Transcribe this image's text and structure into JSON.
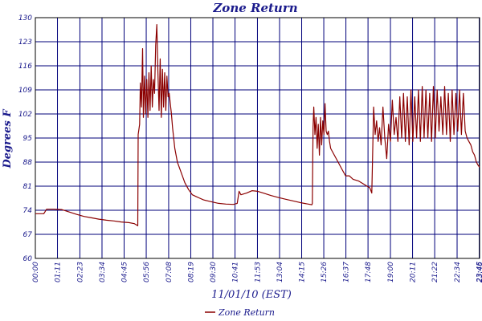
{
  "chart_data": {
    "type": "line",
    "title": "Zone Return",
    "xlabel": "11/01/10 (EST)",
    "ylabel": "Degrees F",
    "ylim": [
      60,
      130
    ],
    "xlim": [
      0,
      23.77
    ],
    "yticks": [
      60,
      67,
      74,
      81,
      88,
      95,
      102,
      109,
      116,
      123,
      130
    ],
    "xticks": [
      {
        "h": 0.0,
        "label": "00:00"
      },
      {
        "h": 1.1833,
        "label": "01:11"
      },
      {
        "h": 2.3833,
        "label": "02:23"
      },
      {
        "h": 3.5667,
        "label": "03:34"
      },
      {
        "h": 4.75,
        "label": "04:45"
      },
      {
        "h": 5.9333,
        "label": "05:56"
      },
      {
        "h": 7.1333,
        "label": "07:08"
      },
      {
        "h": 8.3167,
        "label": "08:19"
      },
      {
        "h": 9.5,
        "label": "09:30"
      },
      {
        "h": 10.6833,
        "label": "10:41"
      },
      {
        "h": 11.8833,
        "label": "11:53"
      },
      {
        "h": 13.0667,
        "label": "13:04"
      },
      {
        "h": 14.25,
        "label": "14:15"
      },
      {
        "h": 15.4333,
        "label": "15:26"
      },
      {
        "h": 16.6167,
        "label": "16:37"
      },
      {
        "h": 17.8,
        "label": "17:48"
      },
      {
        "h": 19.0,
        "label": "19:00"
      },
      {
        "h": 20.1833,
        "label": "20:11"
      },
      {
        "h": 21.3667,
        "label": "21:22"
      },
      {
        "h": 22.5667,
        "label": "22:34"
      },
      {
        "h": 23.75,
        "label": "23:45"
      },
      {
        "h": 23.7667,
        "label": "23:46"
      }
    ],
    "grid": true,
    "legend_position": "bottom-left",
    "series": [
      {
        "name": "Zone Return",
        "color": "#8b0000",
        "x": [
          0,
          0.3,
          0.45,
          0.6,
          1.0,
          1.4,
          1.8,
          2.2,
          2.6,
          3.0,
          3.4,
          3.8,
          4.2,
          4.6,
          5.0,
          5.3,
          5.48,
          5.5,
          5.58,
          5.62,
          5.68,
          5.74,
          5.78,
          5.84,
          5.9,
          5.96,
          6.02,
          6.08,
          6.14,
          6.2,
          6.26,
          6.32,
          6.38,
          6.44,
          6.5,
          6.56,
          6.62,
          6.68,
          6.74,
          6.8,
          6.86,
          6.92,
          6.98,
          7.04,
          7.1,
          7.16,
          7.22,
          7.28,
          7.34,
          7.4,
          7.46,
          7.6,
          7.8,
          8.0,
          8.2,
          8.4,
          8.6,
          8.8,
          9.0,
          9.4,
          9.8,
          10.2,
          10.6,
          10.8,
          10.9,
          11.0,
          11.3,
          11.6,
          11.9,
          12.2,
          12.6,
          13.0,
          13.4,
          13.8,
          14.2,
          14.6,
          14.8,
          14.82,
          14.86,
          14.9,
          14.96,
          15.02,
          15.08,
          15.14,
          15.2,
          15.26,
          15.32,
          15.38,
          15.44,
          15.5,
          15.56,
          15.62,
          15.68,
          15.74,
          15.8,
          16.0,
          16.2,
          16.4,
          16.6,
          16.8,
          17.0,
          17.3,
          17.6,
          17.9,
          18.0,
          18.02,
          18.1,
          18.18,
          18.26,
          18.34,
          18.42,
          18.5,
          18.6,
          18.7,
          18.8,
          18.9,
          19.0,
          19.1,
          19.2,
          19.3,
          19.4,
          19.5,
          19.6,
          19.7,
          19.8,
          19.9,
          20.0,
          20.1,
          20.2,
          20.3,
          20.4,
          20.5,
          20.6,
          20.7,
          20.8,
          20.9,
          21.0,
          21.1,
          21.2,
          21.3,
          21.4,
          21.5,
          21.6,
          21.7,
          21.8,
          21.9,
          22.0,
          22.1,
          22.2,
          22.3,
          22.4,
          22.5,
          22.6,
          22.7,
          22.8,
          22.9,
          23.0,
          23.1,
          23.2,
          23.3,
          23.4,
          23.5,
          23.6,
          23.7,
          23.77
        ],
        "y": [
          73,
          73,
          73,
          74.3,
          74.3,
          74.2,
          73.5,
          72.8,
          72.2,
          71.8,
          71.4,
          71.1,
          70.9,
          70.6,
          70.4,
          70.1,
          69.5,
          96,
          99,
          111,
          104,
          121,
          101,
          113,
          102,
          112,
          101,
          114,
          103,
          116,
          104,
          112,
          108,
          122,
          128,
          114,
          103,
          118,
          101,
          115,
          104,
          114,
          103,
          113,
          107,
          108,
          105,
          102,
          98,
          95,
          92,
          88,
          85,
          82,
          80,
          78.5,
          78,
          77.5,
          77,
          76.5,
          76,
          75.8,
          75.7,
          76,
          79.5,
          78.5,
          79,
          79.7,
          79.5,
          79,
          78.3,
          77.7,
          77.2,
          76.7,
          76.2,
          75.8,
          75.6,
          76,
          98,
          104,
          96,
          101,
          92,
          99,
          90,
          101,
          93,
          100,
          96,
          105,
          97,
          96,
          97,
          94,
          92,
          90,
          88,
          86,
          84,
          84,
          83,
          82.5,
          81.5,
          80.5,
          79,
          83,
          104,
          96,
          100,
          94,
          98,
          93,
          104,
          95,
          89,
          99,
          94,
          106,
          96,
          101,
          94,
          107,
          95,
          108,
          94,
          107,
          93,
          109,
          94,
          107,
          95,
          109,
          94,
          110,
          95,
          109,
          95,
          108,
          94,
          110,
          95,
          109,
          97,
          107,
          96,
          110,
          96,
          108,
          94,
          109,
          96,
          108,
          97,
          109,
          96,
          108,
          97,
          95,
          94,
          93,
          91,
          90,
          88,
          87,
          86.5
        ]
      }
    ]
  }
}
